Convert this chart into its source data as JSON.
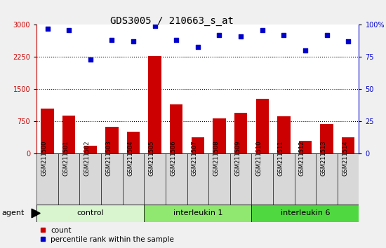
{
  "title": "GDS3005 / 210663_s_at",
  "samples": [
    "GSM211500",
    "GSM211501",
    "GSM211502",
    "GSM211503",
    "GSM211504",
    "GSM211505",
    "GSM211506",
    "GSM211507",
    "GSM211508",
    "GSM211509",
    "GSM211510",
    "GSM211511",
    "GSM211512",
    "GSM211513",
    "GSM211514"
  ],
  "counts": [
    1050,
    880,
    185,
    620,
    510,
    2280,
    1150,
    380,
    820,
    950,
    1280,
    870,
    300,
    700,
    390
  ],
  "percentiles": [
    97,
    96,
    73,
    88,
    87,
    99,
    88,
    83,
    92,
    91,
    96,
    92,
    80,
    92,
    87
  ],
  "groups": [
    {
      "label": "control",
      "start": 0,
      "end": 5,
      "color": "#d8f5d0"
    },
    {
      "label": "interleukin 1",
      "start": 5,
      "end": 10,
      "color": "#90e870"
    },
    {
      "label": "interleukin 6",
      "start": 10,
      "end": 15,
      "color": "#50d840"
    }
  ],
  "bar_color": "#cc0000",
  "dot_color": "#0000cc",
  "left_axis_color": "#cc0000",
  "right_axis_color": "#0000cc",
  "ylim_left": [
    0,
    3000
  ],
  "ylim_right": [
    0,
    100
  ],
  "yticks_left": [
    0,
    750,
    1500,
    2250,
    3000
  ],
  "yticks_right": [
    0,
    25,
    50,
    75,
    100
  ],
  "grid_values": [
    750,
    1500,
    2250
  ],
  "agent_label": "agent",
  "legend_count_label": "count",
  "legend_pct_label": "percentile rank within the sample",
  "background_color": "#f0f0f0",
  "plot_bg_color": "#ffffff",
  "xtick_bg_color": "#d8d8d8",
  "title_fontsize": 10,
  "tick_fontsize": 7,
  "xtick_fontsize": 6,
  "label_fontsize": 8,
  "group_fontsize": 8
}
